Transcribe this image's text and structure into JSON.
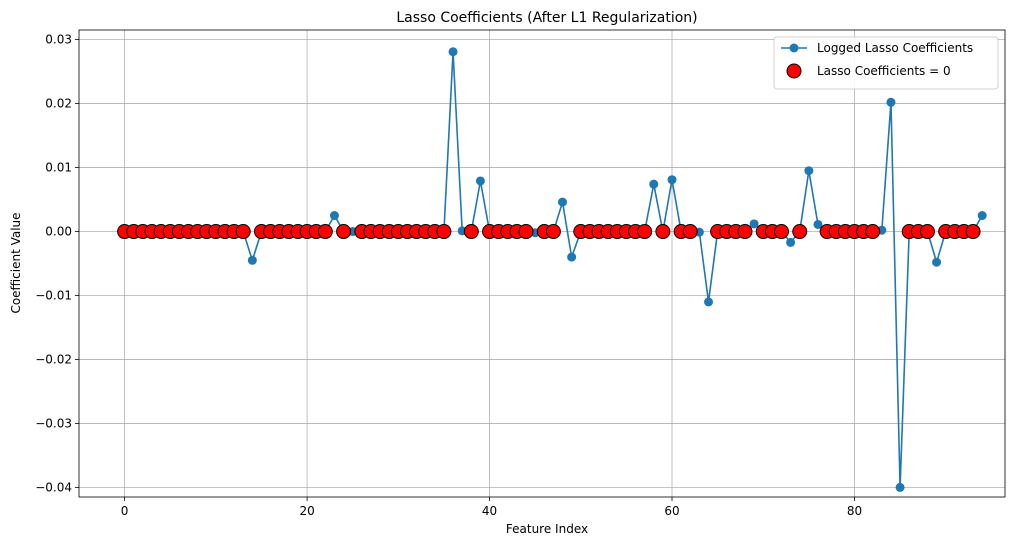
{
  "chart_data": {
    "type": "line",
    "title": "Lasso Coefficients (After L1 Regularization)",
    "xlabel": "Feature Index",
    "ylabel": "Coefficient Value",
    "xlim": [
      -5,
      96.5
    ],
    "ylim": [
      -0.0415,
      0.0315
    ],
    "xticks": [
      0,
      20,
      40,
      60,
      80
    ],
    "yticks": [
      -0.04,
      -0.03,
      -0.02,
      -0.01,
      0.0,
      0.01,
      0.02,
      0.03
    ],
    "xtick_labels": [
      "0",
      "20",
      "40",
      "60",
      "80"
    ],
    "ytick_labels": [
      "−0.04",
      "−0.03",
      "−0.02",
      "−0.01",
      "0.00",
      "0.01",
      "0.02",
      "0.03"
    ],
    "grid": true,
    "legend_position": "top-right",
    "series": [
      {
        "name": "Logged Lasso Coefficients",
        "kind": "line-with-markers",
        "color": "#1f77b4",
        "x": [
          0,
          1,
          2,
          3,
          4,
          5,
          6,
          7,
          8,
          9,
          10,
          11,
          12,
          13,
          14,
          15,
          16,
          17,
          18,
          19,
          20,
          21,
          22,
          23,
          24,
          25,
          26,
          27,
          28,
          29,
          30,
          31,
          32,
          33,
          34,
          35,
          36,
          37,
          38,
          39,
          40,
          41,
          42,
          43,
          44,
          45,
          46,
          47,
          48,
          49,
          50,
          51,
          52,
          53,
          54,
          55,
          56,
          57,
          58,
          59,
          60,
          61,
          62,
          63,
          64,
          65,
          66,
          67,
          68,
          69,
          70,
          71,
          72,
          73,
          74,
          75,
          76,
          77,
          78,
          79,
          80,
          81,
          82,
          83,
          84,
          85,
          86,
          87,
          88,
          89,
          90,
          91,
          92,
          93,
          94
        ],
        "y": [
          0,
          0,
          0,
          0,
          0,
          0,
          0,
          0,
          0,
          0,
          0,
          0,
          0,
          0,
          -0.0045,
          0,
          0,
          0,
          0,
          0,
          0,
          0,
          0,
          0.0025,
          0,
          0,
          0,
          0,
          0,
          0,
          0,
          0,
          0,
          0,
          0,
          0,
          0.0281,
          0.0001,
          0,
          0.0079,
          0,
          0,
          0,
          0,
          0,
          -0.0002,
          0,
          0,
          0.0046,
          -0.004,
          0,
          0,
          0,
          0,
          0,
          0,
          0,
          0,
          0.0074,
          0,
          0.0081,
          0,
          0,
          -0.0001,
          -0.011,
          0,
          0,
          0,
          0,
          0.0012,
          0,
          0,
          0,
          -0.0017,
          0,
          0.0095,
          0.0011,
          0,
          0,
          0,
          0,
          0,
          0,
          0.0002,
          0.0202,
          -0.04,
          0,
          0,
          0,
          -0.0048,
          0,
          0,
          0,
          0,
          0.0025
        ]
      },
      {
        "name": "Lasso Coefficients = 0",
        "kind": "scatter",
        "color": "#ff0000",
        "edge_color": "#000000",
        "x": [
          0,
          1,
          2,
          3,
          4,
          5,
          6,
          7,
          8,
          9,
          10,
          11,
          12,
          13,
          15,
          16,
          17,
          18,
          19,
          20,
          21,
          22,
          24,
          26,
          27,
          28,
          29,
          30,
          31,
          32,
          33,
          34,
          35,
          38,
          40,
          41,
          42,
          43,
          44,
          46,
          47,
          50,
          51,
          52,
          53,
          54,
          55,
          56,
          57,
          59,
          61,
          62,
          65,
          66,
          67,
          68,
          70,
          71,
          72,
          74,
          77,
          78,
          79,
          80,
          81,
          82,
          86,
          87,
          88,
          90,
          91,
          92,
          93
        ],
        "y": [
          0,
          0,
          0,
          0,
          0,
          0,
          0,
          0,
          0,
          0,
          0,
          0,
          0,
          0,
          0,
          0,
          0,
          0,
          0,
          0,
          0,
          0,
          0,
          0,
          0,
          0,
          0,
          0,
          0,
          0,
          0,
          0,
          0,
          0,
          0,
          0,
          0,
          0,
          0,
          0,
          0,
          0,
          0,
          0,
          0,
          0,
          0,
          0,
          0,
          0,
          0,
          0,
          0,
          0,
          0,
          0,
          0,
          0,
          0,
          0,
          0,
          0,
          0,
          0,
          0,
          0,
          0,
          0,
          0,
          0,
          0,
          0,
          0
        ]
      }
    ]
  }
}
